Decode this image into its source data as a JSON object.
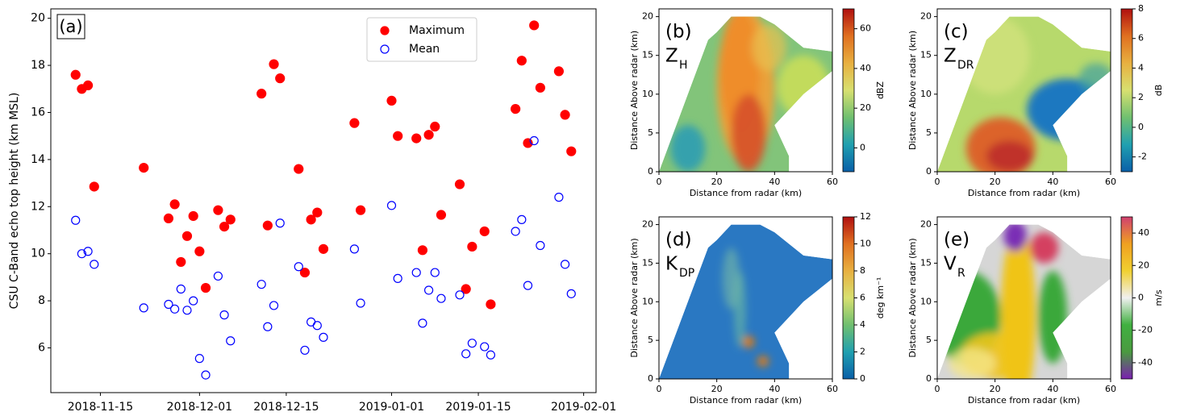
{
  "chart_data": [
    {
      "type": "scatter",
      "panel_label": "(a)",
      "ylabel": "CSU C-Band echo top height (km MSL)",
      "x": [
        "2018-11-11",
        "2018-11-12",
        "2018-11-13",
        "2018-11-14",
        "2018-11-22",
        "2018-11-26",
        "2018-11-27",
        "2018-11-28",
        "2018-11-29",
        "2018-11-30",
        "2018-12-01",
        "2018-12-02",
        "2018-12-04",
        "2018-12-05",
        "2018-12-06",
        "2018-12-11",
        "2018-12-12",
        "2018-12-13",
        "2018-12-14",
        "2018-12-17",
        "2018-12-18",
        "2018-12-19",
        "2018-12-20",
        "2018-12-21",
        "2018-12-26",
        "2018-12-27",
        "2019-01-01",
        "2019-01-02",
        "2019-01-05",
        "2019-01-06",
        "2019-01-07",
        "2019-01-08",
        "2019-01-09",
        "2019-01-12",
        "2019-01-13",
        "2019-01-14",
        "2019-01-16",
        "2019-01-17",
        "2019-01-21",
        "2019-01-22",
        "2019-01-23",
        "2019-01-24",
        "2019-01-25",
        "2019-01-28",
        "2019-01-29",
        "2019-01-30"
      ],
      "series": [
        {
          "name": "Maximum",
          "color": "#ff0000",
          "marker": "filled",
          "values": [
            17.6,
            17.0,
            17.15,
            12.85,
            13.65,
            11.5,
            12.1,
            9.65,
            10.75,
            11.6,
            10.1,
            8.55,
            11.85,
            11.15,
            11.45,
            16.8,
            11.2,
            18.05,
            17.45,
            13.6,
            9.2,
            11.45,
            11.75,
            10.2,
            15.55,
            11.85,
            16.5,
            15.0,
            14.9,
            10.15,
            15.05,
            15.4,
            11.65,
            12.95,
            8.5,
            10.3,
            10.95,
            7.85,
            16.15,
            18.2,
            14.7,
            19.7,
            17.05,
            17.75,
            15.9,
            14.35
          ]
        },
        {
          "name": "Mean",
          "color": "#0000ff",
          "marker": "open",
          "values": [
            11.42,
            10.0,
            10.1,
            9.55,
            7.7,
            7.85,
            7.65,
            8.5,
            7.6,
            8.0,
            5.55,
            4.85,
            9.05,
            7.4,
            6.3,
            8.7,
            6.9,
            7.8,
            11.3,
            9.45,
            5.9,
            7.1,
            6.95,
            6.45,
            10.2,
            7.9,
            12.05,
            8.95,
            9.2,
            7.05,
            8.45,
            9.2,
            8.1,
            8.25,
            5.75,
            6.2,
            6.05,
            5.7,
            10.95,
            11.45,
            8.65,
            14.8,
            10.35,
            12.4,
            9.55,
            8.3
          ]
        }
      ],
      "xlim": [
        "2018-11-07",
        "2019-02-03"
      ],
      "xticks": [
        "2018-11-15",
        "2018-12-01",
        "2018-12-15",
        "2019-01-01",
        "2019-01-15",
        "2019-02-01"
      ],
      "ylim": [
        4.1,
        20.4
      ],
      "yticks": [
        6,
        8,
        10,
        12,
        14,
        16,
        18,
        20
      ],
      "legend": "upper right"
    },
    {
      "type": "image",
      "panel_label": "(b)",
      "variable": "Z",
      "variable_sub": "H",
      "xlabel": "Distance from radar (km)",
      "ylabel": "Distance Above radar  (km)",
      "xlim": [
        0,
        60
      ],
      "xticks": [
        0,
        20,
        40,
        60
      ],
      "ylim": [
        0,
        21
      ],
      "yticks": [
        0,
        5,
        10,
        15,
        20
      ],
      "colorbar": {
        "label": "dBZ",
        "lim": [
          -12,
          70
        ],
        "ticks": [
          0,
          20,
          40,
          60
        ],
        "colors": [
          "#0a5fa8",
          "#20a0b0",
          "#70c070",
          "#d8e070",
          "#e8b040",
          "#e07020",
          "#b01010"
        ]
      }
    },
    {
      "type": "image",
      "panel_label": "(c)",
      "variable": "Z",
      "variable_sub": "DR",
      "xlabel": "Distance from radar (km)",
      "ylabel": "Distance Above radar  (km)",
      "xlim": [
        0,
        60
      ],
      "xticks": [
        0,
        20,
        40,
        60
      ],
      "ylim": [
        0,
        21
      ],
      "yticks": [
        0,
        5,
        10,
        15,
        20
      ],
      "colorbar": {
        "label": "dB",
        "lim": [
          -3,
          8
        ],
        "ticks": [
          -2,
          0,
          2,
          4,
          6,
          8
        ],
        "colors": [
          "#0a5fa8",
          "#20a0b0",
          "#70c070",
          "#d8e070",
          "#e8b040",
          "#e07020",
          "#b01010"
        ]
      }
    },
    {
      "type": "image",
      "panel_label": "(d)",
      "variable": "K",
      "variable_sub": "DP",
      "xlabel": "Distance from radar (km)",
      "ylabel": "Distance Above radar  (km)",
      "xlim": [
        0,
        60
      ],
      "xticks": [
        0,
        20,
        40,
        60
      ],
      "ylim": [
        0,
        21
      ],
      "yticks": [
        0,
        5,
        10,
        15,
        20
      ],
      "colorbar": {
        "label": "deg km⁻¹",
        "lim": [
          0,
          12
        ],
        "ticks": [
          0,
          2,
          4,
          6,
          8,
          10,
          12
        ],
        "colors": [
          "#0a5fa8",
          "#20a0b0",
          "#70c070",
          "#d8e070",
          "#e8b040",
          "#e07020",
          "#b01010"
        ]
      }
    },
    {
      "type": "image",
      "panel_label": "(e)",
      "variable": "V",
      "variable_sub": "R",
      "xlabel": "Distance from radar (km)",
      "ylabel": "Distance Above radar  (km)",
      "xlim": [
        0,
        60
      ],
      "xticks": [
        0,
        20,
        40,
        60
      ],
      "ylim": [
        0,
        21
      ],
      "yticks": [
        0,
        5,
        10,
        15,
        20
      ],
      "colorbar": {
        "label": "m/s",
        "lim": [
          -50,
          50
        ],
        "ticks": [
          -40,
          -20,
          0,
          20,
          40
        ],
        "colors": [
          "#7a20b0",
          "#4a9a40",
          "#40b040",
          "#f0f0f0",
          "#f0d030",
          "#f0a020",
          "#d04070"
        ]
      }
    }
  ]
}
